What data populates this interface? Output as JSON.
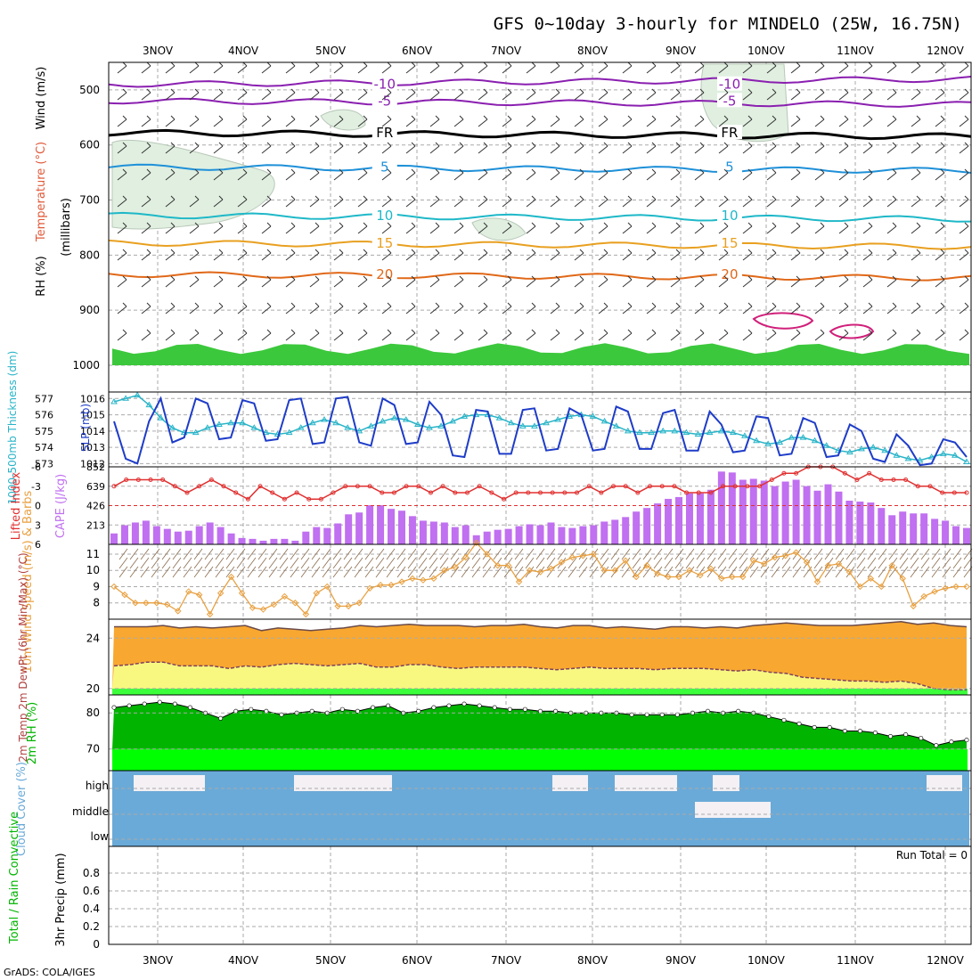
{
  "title": "GFS 0~10day 3-hourly for MINDELO (25W, 16.75N)",
  "footer": "GrADS: COLA/IGES",
  "colors": {
    "rh_green": "#3cc83c",
    "rh_light": "#e0efe0",
    "temp_purple": "#8a1fb0",
    "temp_blue": "#1e90d8",
    "temp_cyan": "#1eb8c8",
    "temp_orange": "#e8a020",
    "temp_dkorange": "#e06818",
    "freezing": "#000000",
    "slp_blue": "#1e3cc8",
    "thickness_cyan": "#28b4c8",
    "cape_violet": "#c070f0",
    "li_red": "#e03030",
    "wind_orange": "#e8a040",
    "barb_brown": "#8a6a4a",
    "temp_fill": "#f8a830",
    "dew_fill": "#f8f880",
    "dew_line": "#804060",
    "rh_dark": "#00b400",
    "rh_bright": "#00ff00",
    "cloud_blue": "#6aaad8",
    "cloud_white": "#f4f0f4"
  },
  "chart_data": [
    {
      "type": "heatmap",
      "name_of_panel": "upper_air",
      "x_ticks": [
        "3NOV",
        "4NOV",
        "5NOV",
        "6NOV",
        "7NOV",
        "8NOV",
        "9NOV",
        "10NOV",
        "11NOV",
        "12NOV"
      ],
      "y_ticks": [
        "500",
        "600",
        "700",
        "800",
        "900",
        "1000"
      ],
      "ylim": [
        450,
        1000
      ],
      "ylabel": "(millibars)",
      "side_labels": [
        "RH (%)",
        "Temperature (°C)",
        "Wind (m/s)"
      ],
      "isotherms": [
        {
          "label": "-10",
          "pressure": 490
        },
        {
          "label": "-5",
          "pressure": 520
        },
        {
          "label": "FR",
          "pressure": 578
        },
        {
          "label": "5",
          "pressure": 640
        },
        {
          "label": "10",
          "pressure": 728
        },
        {
          "label": "15",
          "pressure": 778
        },
        {
          "label": "20",
          "pressure": 835
        }
      ],
      "moist_layer_pressure": [
        960,
        1000
      ]
    },
    {
      "type": "line",
      "name_of_panel": "slp_thickness",
      "ylabel_left": "1000-500mb Thickness (dm)",
      "ylabel_right": "SLP (mb)",
      "left_ticks": [
        "577",
        "576",
        "575",
        "574",
        "573"
      ],
      "right_ticks": [
        "1016",
        "1015",
        "1014",
        "1013",
        "1012"
      ],
      "left_ylim": [
        572.8,
        577.4
      ],
      "right_ylim": [
        1011.8,
        1016.4
      ],
      "series": [
        {
          "name": "SLP (mb)",
          "axis": "right",
          "values": [
            1014.6,
            1012.3,
            1012.0,
            1014.6,
            1016.0,
            1013.3,
            1013.6,
            1016.0,
            1015.7,
            1013.5,
            1013.6,
            1015.9,
            1015.7,
            1013.4,
            1013.5,
            1015.9,
            1016.0,
            1013.2,
            1013.3,
            1016.0,
            1016.1,
            1013.3,
            1013.1,
            1016.0,
            1015.6,
            1013.2,
            1013.3,
            1015.8,
            1015.0,
            1012.5,
            1012.4,
            1015.3,
            1015.2,
            1012.6,
            1012.6,
            1015.3,
            1015.4,
            1012.8,
            1012.9,
            1015.4,
            1015.0,
            1012.8,
            1012.9,
            1015.5,
            1015.2,
            1012.9,
            1012.9,
            1015.1,
            1015.3,
            1012.8,
            1012.8,
            1015.2,
            1014.4,
            1012.7,
            1012.8,
            1014.9,
            1014.8,
            1012.5,
            1012.6,
            1014.8,
            1014.5,
            1012.4,
            1012.5,
            1014.4,
            1014.0,
            1012.3,
            1012.1,
            1013.8,
            1013.1,
            1011.9,
            1012.0,
            1013.5,
            1013.3,
            1012.4
          ]
        },
        {
          "name": "1000-500mb Thickness (dm)",
          "axis": "left",
          "values": [
            576.8,
            577.0,
            577.2,
            576.6,
            575.8,
            575.2,
            574.9,
            574.9,
            575.2,
            575.4,
            575.5,
            575.5,
            575.2,
            574.9,
            574.8,
            574.9,
            575.2,
            575.5,
            575.7,
            575.5,
            575.2,
            575.0,
            575.3,
            575.6,
            575.8,
            575.7,
            575.4,
            575.2,
            575.3,
            575.6,
            575.9,
            576.0,
            576.0,
            575.8,
            575.5,
            575.3,
            575.3,
            575.5,
            575.7,
            575.9,
            576.0,
            575.9,
            575.6,
            575.3,
            575.0,
            574.9,
            574.9,
            575.0,
            575.0,
            574.9,
            574.8,
            574.9,
            575.0,
            574.9,
            574.7,
            574.4,
            574.2,
            574.3,
            574.6,
            574.6,
            574.4,
            574.1,
            573.8,
            573.7,
            573.9,
            574.0,
            573.8,
            573.5,
            573.3,
            573.2,
            573.4,
            573.6,
            573.5,
            573.1
          ]
        }
      ]
    },
    {
      "type": "bar",
      "name_of_panel": "cape_li",
      "ylabel_left": "Lifted Index",
      "ylabel_right": "CAPE (J/kg)",
      "left_ticks": [
        "-6",
        "-3",
        "0",
        "3",
        "6"
      ],
      "right_ticks": [
        "852",
        "639",
        "426",
        "213"
      ],
      "right_ylim": [
        0,
        852
      ],
      "left_ylim": [
        -6,
        6
      ],
      "series": [
        {
          "name": "CAPE (J/kg)",
          "axis": "right",
          "values": [
            120,
            210,
            240,
            260,
            200,
            170,
            140,
            150,
            200,
            240,
            190,
            120,
            70,
            60,
            40,
            60,
            60,
            40,
            140,
            190,
            180,
            230,
            330,
            350,
            430,
            430,
            390,
            370,
            310,
            260,
            250,
            240,
            190,
            210,
            100,
            140,
            160,
            170,
            200,
            220,
            210,
            240,
            190,
            180,
            200,
            210,
            250,
            270,
            300,
            360,
            400,
            450,
            500,
            520,
            560,
            560,
            600,
            800,
            790,
            710,
            720,
            700,
            640,
            690,
            710,
            640,
            590,
            660,
            580,
            480,
            470,
            460,
            400,
            320,
            360,
            340,
            340,
            280,
            260,
            200,
            180
          ]
        },
        {
          "name": "Lifted Index",
          "axis": "left",
          "values": [
            -3,
            -4,
            -4,
            -4,
            -4,
            -3,
            -2,
            -3,
            -4,
            -3,
            -2,
            -1,
            -3,
            -2,
            -1,
            -2,
            -1,
            -1,
            -2,
            -3,
            -3,
            -3,
            -2,
            -2,
            -3,
            -3,
            -2,
            -3,
            -2,
            -2,
            -3,
            -2,
            -1,
            -2,
            -2,
            -2,
            -2,
            -2,
            -2,
            -3,
            -2,
            -3,
            -3,
            -2,
            -3,
            -3,
            -3,
            -2,
            -2,
            -2,
            -3,
            -3,
            -3,
            -3,
            -4,
            -5,
            -5,
            -6,
            -6,
            -6,
            -5,
            -4,
            -5,
            -4,
            -4,
            -4,
            -3,
            -3,
            -2,
            -2,
            -2
          ]
        }
      ]
    },
    {
      "type": "line",
      "name_of_panel": "wind10m",
      "ylabel": "10m Wind Speed (m/s) & Barbs",
      "ticks": [
        "11",
        "10",
        "9",
        "8"
      ],
      "ylim": [
        7,
        11.6
      ],
      "series": [
        {
          "name": "10m Wind Speed",
          "values": [
            9.0,
            8.5,
            8.0,
            8.0,
            8.0,
            7.9,
            7.5,
            8.7,
            8.5,
            7.3,
            8.6,
            9.6,
            8.6,
            7.7,
            7.6,
            7.9,
            8.4,
            8.0,
            7.3,
            8.6,
            9.0,
            7.8,
            7.8,
            8.0,
            8.9,
            9.1,
            9.1,
            9.3,
            9.5,
            9.4,
            9.5,
            10.0,
            10.2,
            10.8,
            11.7,
            11.0,
            10.3,
            10.3,
            9.3,
            10.0,
            9.9,
            10.1,
            10.5,
            10.8,
            10.9,
            11.0,
            10.0,
            10.0,
            10.6,
            9.6,
            10.3,
            9.8,
            9.6,
            9.6,
            10.0,
            9.7,
            10.1,
            9.5,
            9.6,
            9.6,
            10.6,
            10.4,
            10.8,
            10.9,
            11.1,
            10.5,
            9.3,
            10.3,
            10.4,
            9.9,
            9.0,
            9.5,
            9.0,
            10.3,
            9.5,
            7.8,
            8.4,
            8.7,
            8.9,
            9.0,
            9.0
          ]
        }
      ]
    },
    {
      "type": "area",
      "name_of_panel": "temp2m",
      "ylabel": "2m Temp 2m DewPt (6hr Min/Max) (°C)",
      "ticks": [
        "24",
        "20"
      ],
      "ylim": [
        19.5,
        25.5
      ],
      "series": [
        {
          "name": "2m Temp",
          "values": [
            24.9,
            24.9,
            24.9,
            25.0,
            24.8,
            24.9,
            24.8,
            24.9,
            25.0,
            24.6,
            24.8,
            24.7,
            24.6,
            24.7,
            24.8,
            25.0,
            24.9,
            25.0,
            25.1,
            25.0,
            25.0,
            25.0,
            24.9,
            25.0,
            25.0,
            25.1,
            24.9,
            24.8,
            25.0,
            25.0,
            24.8,
            24.9,
            24.8,
            24.7,
            24.9,
            24.9,
            24.8,
            24.9,
            24.8,
            25.0,
            25.1,
            25.2,
            25.1,
            25.0,
            25.0,
            25.0,
            25.1,
            25.2,
            25.3,
            25.1,
            25.2,
            25.0,
            24.9
          ]
        },
        {
          "name": "2m DewPt",
          "values": [
            21.8,
            21.9,
            22.1,
            22.1,
            21.8,
            21.8,
            21.8,
            21.6,
            21.8,
            21.7,
            21.9,
            22.0,
            21.9,
            21.8,
            21.9,
            22.0,
            21.7,
            21.7,
            21.9,
            21.9,
            21.7,
            21.6,
            21.7,
            21.7,
            21.7,
            21.7,
            21.6,
            21.5,
            21.6,
            21.7,
            21.6,
            21.6,
            21.6,
            21.5,
            21.6,
            21.6,
            21.6,
            21.5,
            21.4,
            21.5,
            21.3,
            21.2,
            20.9,
            20.8,
            20.7,
            20.6,
            20.6,
            20.5,
            20.6,
            20.4,
            20.0,
            19.9,
            19.9
          ]
        }
      ]
    },
    {
      "type": "area",
      "name_of_panel": "rh2m",
      "ylabel": "2m RH (%)",
      "ticks": [
        "80",
        "70"
      ],
      "ylim": [
        64,
        85
      ],
      "series": [
        {
          "name": "2m RH",
          "values": [
            81.5,
            82,
            82.5,
            83,
            82.5,
            81.5,
            80,
            78.5,
            80.5,
            81,
            80.5,
            79.5,
            80,
            80.5,
            80,
            81,
            80.5,
            81.5,
            82,
            80,
            80.5,
            81.5,
            82,
            82.5,
            82,
            81.5,
            81,
            81,
            80.5,
            80.5,
            80,
            80,
            80,
            80,
            79.5,
            79.5,
            79.5,
            79.5,
            80,
            80.5,
            80,
            80.5,
            80,
            79,
            78,
            77,
            76,
            76,
            75,
            75,
            74.5,
            73.5,
            74,
            73,
            71,
            72,
            72.5
          ]
        }
      ]
    },
    {
      "type": "heatmap",
      "name_of_panel": "cloud",
      "ylabel": "Cloud Cover (%)",
      "row_labels": [
        "high",
        "middle",
        "low"
      ]
    },
    {
      "type": "line",
      "name_of_panel": "precip",
      "ylabel_left": "Total / Rain Convective",
      "ylabel": "3hr Precip (mm)",
      "ticks": [
        "0.8",
        "0.6",
        "0.4",
        "0.2",
        "0"
      ],
      "ylim": [
        0,
        1
      ],
      "annotation": "Run Total = 0",
      "series": []
    }
  ]
}
